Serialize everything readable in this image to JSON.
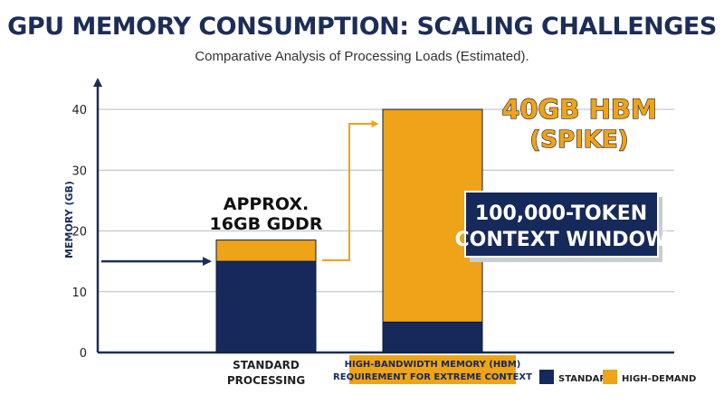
{
  "header": {
    "title": "GPU MEMORY CONSUMPTION: SCALING CHALLENGES",
    "subtitle": "Comparative Analysis of Processing Loads (Estimated)."
  },
  "chart_data": {
    "type": "bar",
    "stacked": true,
    "categories": [
      [
        "STANDARD",
        "PROCESSING"
      ],
      [
        "HIGH-BANDWIDTH MEMORY (HBM)",
        "REQUIREMENT FOR EXTREME CONTEXT"
      ]
    ],
    "series": [
      {
        "name": "STANDARD",
        "color": "#15295a",
        "values": [
          15,
          5
        ]
      },
      {
        "name": "HIGH-DEMAND",
        "color": "#eea319",
        "values": [
          3.5,
          35
        ]
      }
    ],
    "ylabel": "MEMORY (GB)",
    "ylim": [
      0,
      40
    ],
    "yticks": [
      0,
      10,
      20,
      30,
      40
    ],
    "grid": true,
    "legend_position": "bottom-right",
    "annotations": {
      "bar1_label": [
        "APPROX.",
        "16GB GDDR"
      ],
      "bar2_label": [
        "40GB HBM",
        "(SPIKE)"
      ],
      "callout": [
        "100,000-TOKEN",
        "CONTEXT WINDOW"
      ]
    },
    "colors": {
      "navy": "#15295a",
      "gold": "#eea319",
      "grid": "#b8bcc6",
      "axis": "#1c2d57"
    }
  }
}
